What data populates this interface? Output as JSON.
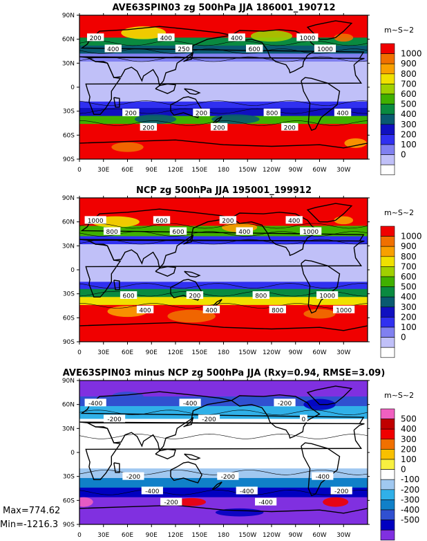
{
  "chart_data": [
    {
      "type": "heatmap",
      "title": "AVE63SPIN03 zg 500hPa JJA 186001_190712",
      "unit_label": "m~S~2",
      "x_ticks": [
        "0",
        "30E",
        "60E",
        "90E",
        "120E",
        "150E",
        "180",
        "150W",
        "120W",
        "90W",
        "60W",
        "30W"
      ],
      "y_ticks": [
        "90N",
        "60N",
        "30N",
        "0",
        "30S",
        "60S",
        "90S"
      ],
      "colorbar": {
        "labels": [
          "1000",
          "900",
          "800",
          "700",
          "600",
          "500",
          "400",
          "300",
          "200",
          "100",
          "0"
        ],
        "colors": [
          "#f00000",
          "#f07000",
          "#f8a000",
          "#f0e000",
          "#a0d000",
          "#40b000",
          "#0a8a40",
          "#0a5a70",
          "#1010c0",
          "#3030f0",
          "#8080f0",
          "#c0c0f8",
          "#ffffff"
        ]
      },
      "contour_labels": [
        "200",
        "400",
        "200",
        "200",
        "400",
        "250",
        "200",
        "200",
        "400",
        "600",
        "800",
        "200",
        "1000",
        "1000",
        "400"
      ]
    },
    {
      "type": "heatmap",
      "title": "NCP zg 500hPa JJA 195001_199912",
      "unit_label": "m~S~2",
      "x_ticks": [
        "0",
        "30E",
        "60E",
        "90E",
        "120E",
        "150E",
        "180",
        "150W",
        "120W",
        "90W",
        "60W",
        "30W"
      ],
      "y_ticks": [
        "90N",
        "60N",
        "30N",
        "0",
        "30S",
        "60S",
        "90S"
      ],
      "colorbar": {
        "labels": [
          "1000",
          "900",
          "800",
          "700",
          "600",
          "500",
          "400",
          "300",
          "200",
          "100",
          "0"
        ],
        "colors": [
          "#f00000",
          "#f07000",
          "#f8a000",
          "#f0e000",
          "#a0d000",
          "#40b000",
          "#0a8a40",
          "#0a5a70",
          "#1010c0",
          "#3030f0",
          "#8080f0",
          "#c0c0f8",
          "#ffffff"
        ]
      },
      "contour_labels": [
        "1000",
        "800",
        "600",
        "400",
        "600",
        "600",
        "200",
        "400",
        "200",
        "400",
        "800",
        "800",
        "400",
        "1000",
        "1000",
        "1000"
      ]
    },
    {
      "type": "heatmap",
      "title": "AVE63SPIN03 minus NCP zg 500hPa JJA (Rxy=0.94, RMSE=3.09)",
      "unit_label": "m~S~2",
      "x_ticks": [
        "0",
        "30E",
        "60E",
        "90E",
        "120E",
        "150E",
        "180",
        "150W",
        "120W",
        "90W",
        "60W",
        "30W"
      ],
      "y_ticks": [
        "90N",
        "60N",
        "30N",
        "0",
        "30S",
        "60S",
        "90S"
      ],
      "colorbar": {
        "labels": [
          "500",
          "400",
          "300",
          "200",
          "100",
          "0",
          "-100",
          "-200",
          "-300",
          "-400",
          "-500"
        ],
        "colors": [
          "#f060c0",
          "#c00000",
          "#f00000",
          "#f07000",
          "#f8c000",
          "#f8f040",
          "#ffffff",
          "#a0c8f0",
          "#30b0e8",
          "#1080c8",
          "#3050d0",
          "#0000c0",
          "#8030e0"
        ]
      },
      "contour_labels": [
        "-400",
        "-200",
        "-200",
        "-400",
        "-200",
        "-400",
        "-200",
        "-200",
        "-400",
        "-400",
        "-200",
        "0",
        "-400",
        "-200"
      ],
      "max_label": "Max=774.62",
      "min_label": "Min=-1216.3"
    }
  ]
}
